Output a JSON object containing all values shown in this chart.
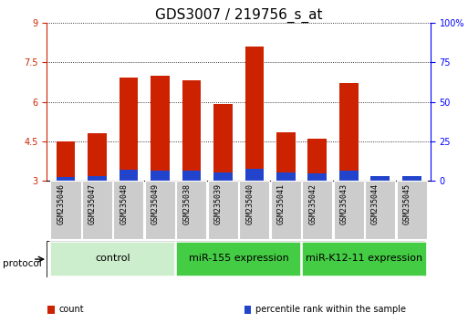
{
  "title": "GDS3007 / 219756_s_at",
  "samples": [
    "GSM235046",
    "GSM235047",
    "GSM235048",
    "GSM235049",
    "GSM235038",
    "GSM235039",
    "GSM235040",
    "GSM235041",
    "GSM235042",
    "GSM235043",
    "GSM235044",
    "GSM235045"
  ],
  "count_values": [
    4.5,
    4.8,
    6.9,
    7.0,
    6.8,
    5.9,
    8.1,
    4.85,
    4.6,
    6.7,
    3.0,
    3.0
  ],
  "percentile_values": [
    3.15,
    3.18,
    3.42,
    3.38,
    3.38,
    3.32,
    3.45,
    3.32,
    3.28,
    3.38,
    3.18,
    3.18
  ],
  "ylim_left": [
    3,
    9
  ],
  "ylim_right": [
    0,
    100
  ],
  "yticks_left": [
    3,
    4.5,
    6,
    7.5,
    9
  ],
  "yticks_right": [
    0,
    25,
    50,
    75,
    100
  ],
  "bar_color_red": "#cc2200",
  "bar_color_blue": "#2244cc",
  "bar_width": 0.6,
  "group_defs": [
    {
      "start": 0,
      "end": 3,
      "color": "#cceecc",
      "label": "control"
    },
    {
      "start": 4,
      "end": 7,
      "color": "#44cc44",
      "label": "miR-155 expression"
    },
    {
      "start": 8,
      "end": 11,
      "color": "#44cc44",
      "label": "miR-K12-11 expression"
    }
  ],
  "protocol_label": "protocol",
  "legend_items": [
    {
      "label": "count",
      "color": "#cc2200"
    },
    {
      "label": "percentile rank within the sample",
      "color": "#2244cc"
    }
  ],
  "title_fontsize": 11,
  "tick_fontsize": 7,
  "group_fontsize": 8,
  "legend_fontsize": 7
}
